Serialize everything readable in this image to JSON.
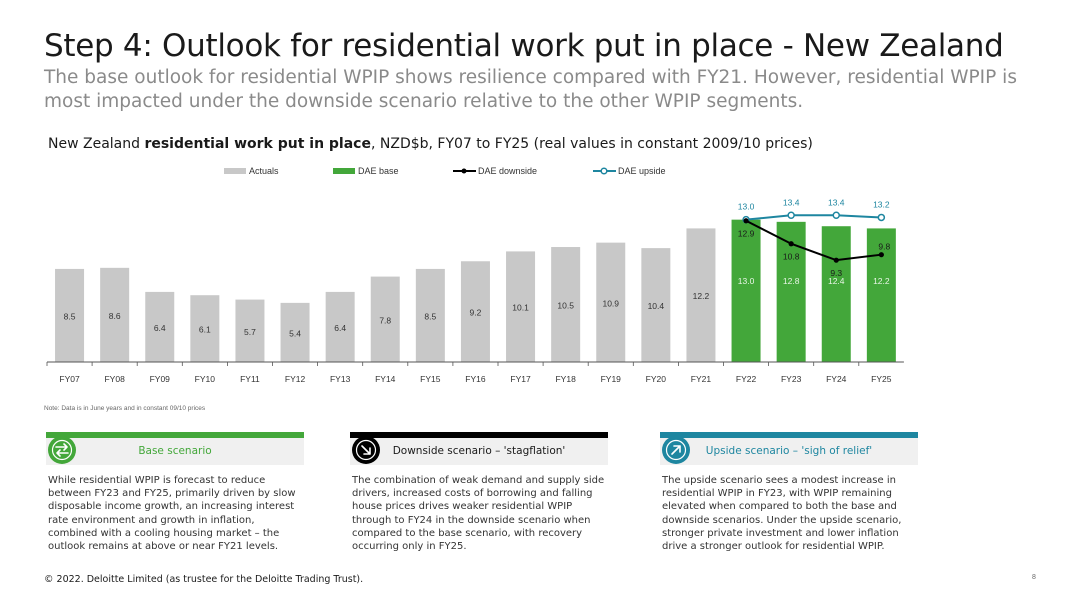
{
  "header": {
    "title": "Step 4: Outlook for residential work put in place - New Zealand",
    "subtitle": "The base outlook for residential WPIP shows resilience compared with FY21. However, residential WPIP is most impacted under the downside scenario relative to the other WPIP segments."
  },
  "chart_title": {
    "prefix": "New Zealand ",
    "bold": "residential work put in place",
    "suffix": ", NZD$b, FY07 to FY25 (real values in constant 2009/10 prices)"
  },
  "chart_data": {
    "type": "bar",
    "categories": [
      "FY07",
      "FY08",
      "FY09",
      "FY10",
      "FY11",
      "FY12",
      "FY13",
      "FY14",
      "FY15",
      "FY16",
      "FY17",
      "FY18",
      "FY19",
      "FY20",
      "FY21",
      "FY22",
      "FY23",
      "FY24",
      "FY25"
    ],
    "series": [
      {
        "name": "Actuals",
        "type": "bar",
        "color": "#c8c8c8",
        "values": [
          8.5,
          8.6,
          6.4,
          6.1,
          5.7,
          5.4,
          6.4,
          7.8,
          8.5,
          9.2,
          10.1,
          10.5,
          10.9,
          10.4,
          12.2,
          null,
          null,
          null,
          null
        ]
      },
      {
        "name": "DAE base",
        "type": "bar",
        "color": "#43a73a",
        "values": [
          null,
          null,
          null,
          null,
          null,
          null,
          null,
          null,
          null,
          null,
          null,
          null,
          null,
          null,
          null,
          13.0,
          12.8,
          12.4,
          12.2
        ]
      },
      {
        "name": "DAE downside",
        "type": "line",
        "color": "#000000",
        "values": [
          null,
          null,
          null,
          null,
          null,
          null,
          null,
          null,
          null,
          null,
          null,
          null,
          null,
          null,
          null,
          12.9,
          10.8,
          9.3,
          9.8
        ]
      },
      {
        "name": "DAE upside",
        "type": "line",
        "color": "#1e86a0",
        "values": [
          null,
          null,
          null,
          null,
          null,
          null,
          null,
          null,
          null,
          null,
          null,
          null,
          null,
          null,
          null,
          13.0,
          13.4,
          13.4,
          13.2
        ]
      }
    ],
    "ylim": [
      0,
      16
    ],
    "legend_position": "top",
    "grid": false
  },
  "note": "Note: Data is in June years and in constant 09/10 prices",
  "cards": [
    {
      "title": "Base scenario",
      "color": "#43a73a",
      "icon": "arrows-exchange-icon",
      "body": "While residential WPIP is forecast to reduce between FY23 and FY25, primarily driven by slow disposable income growth, an increasing interest rate environment and growth in inflation, combined with a cooling housing market – the outlook remains at above or near FY21 levels."
    },
    {
      "title": "Downside scenario – 'stagflation'",
      "color": "#000000",
      "icon": "arrow-down-right-icon",
      "body": "The combination of weak demand and supply side drivers, increased costs of borrowing and falling house prices drives weaker residential WPIP through to FY24 in the downside scenario when compared to the base scenario, with recovery occurring only in FY25."
    },
    {
      "title": "Upside scenario – 'sigh of relief'",
      "color": "#1e86a0",
      "icon": "arrow-up-right-icon",
      "body": "The upside scenario sees a modest increase in residential WPIP in FY23, with WPIP remaining elevated when compared to both the base and downside scenarios. Under the upside scenario, stronger private investment and lower inflation drive a stronger outlook for residential WPIP."
    }
  ],
  "footer": "© 2022. Deloitte Limited (as trustee for the Deloitte Trading Trust).",
  "page_number": "8"
}
